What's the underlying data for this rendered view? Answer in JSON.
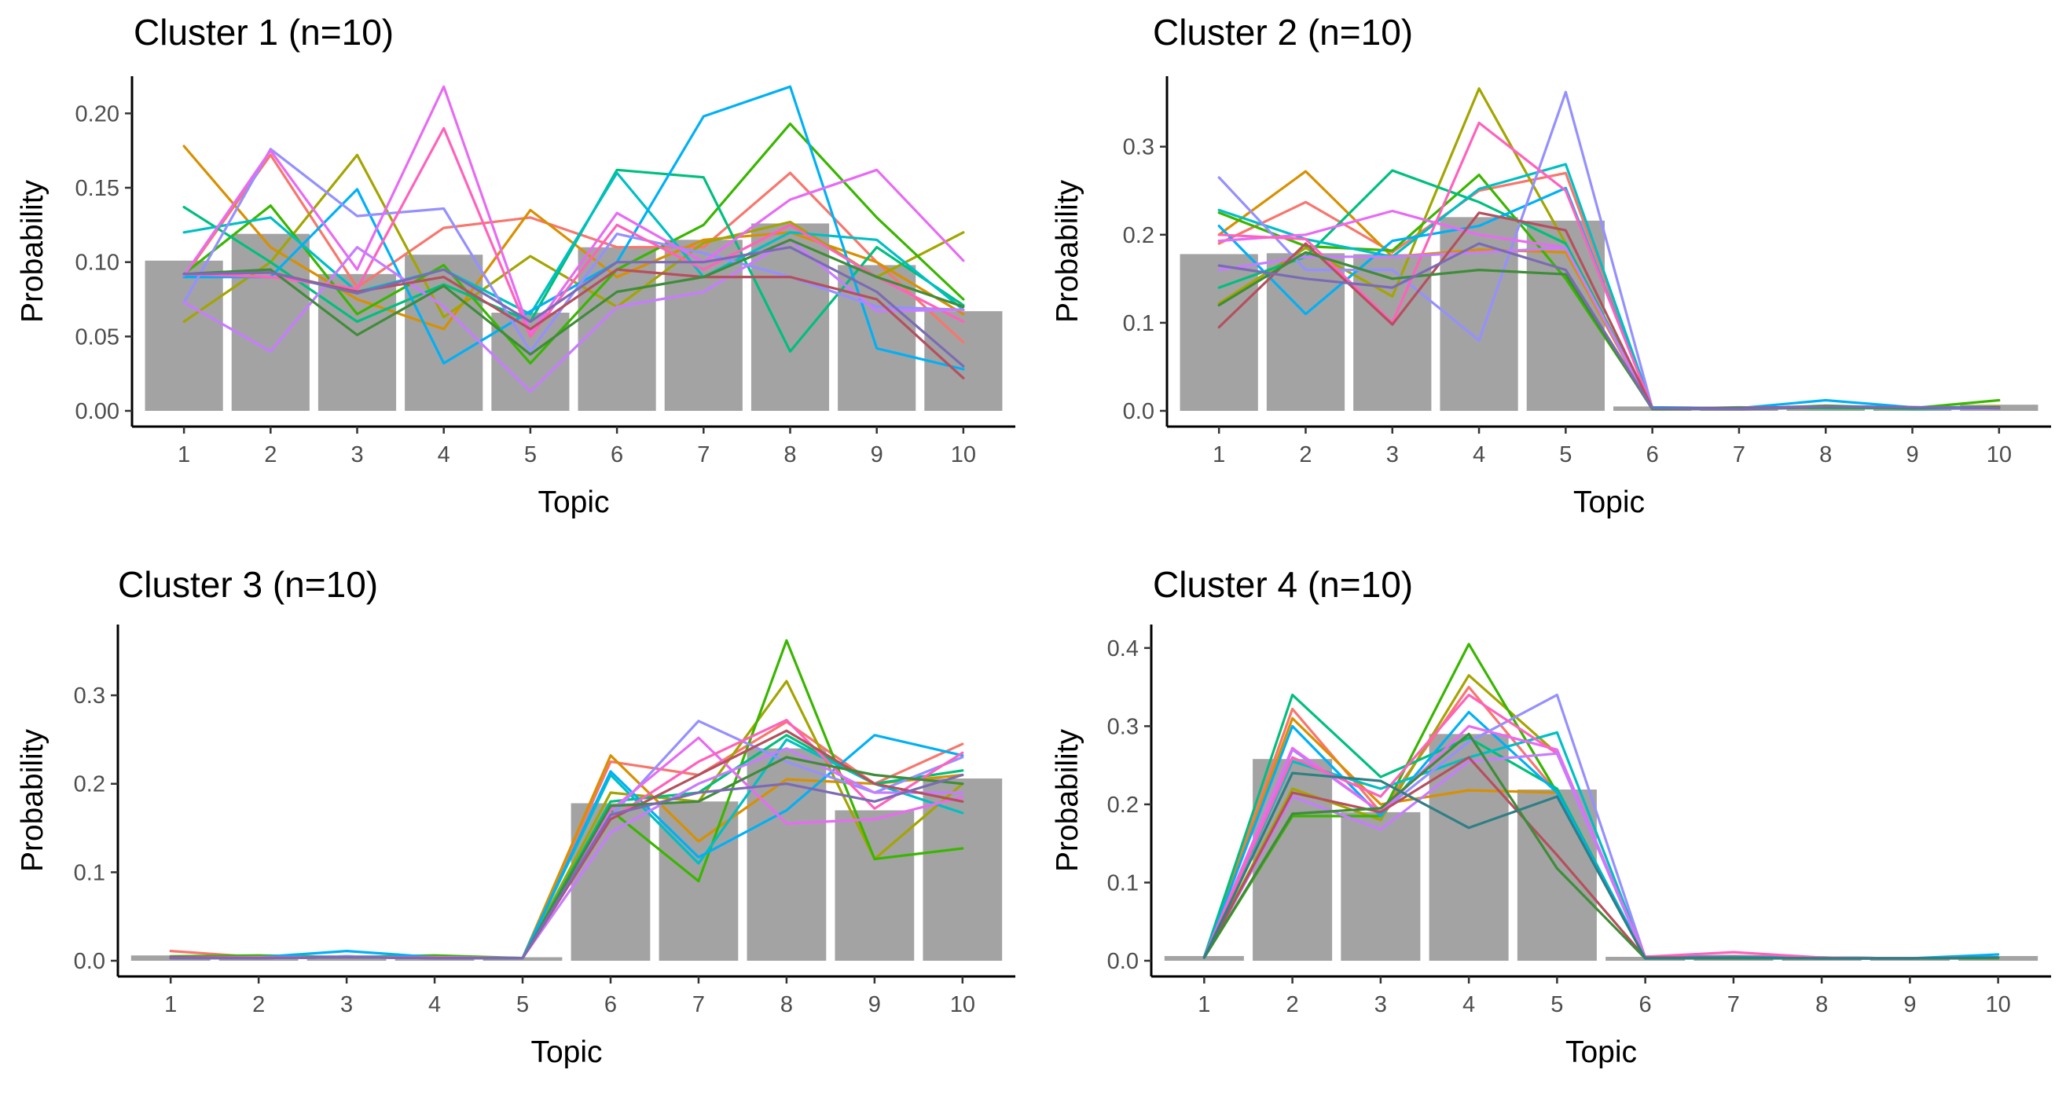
{
  "chart_data": [
    {
      "type": "bar+line",
      "title": "Cluster 1 (n=10)",
      "xlabel": "Topic",
      "ylabel": "Probability",
      "categories": [
        "1",
        "2",
        "3",
        "4",
        "5",
        "6",
        "7",
        "8",
        "9",
        "10"
      ],
      "ylim": [
        0,
        0.225
      ],
      "yticks": [
        0.0,
        0.05,
        0.1,
        0.15,
        0.2
      ],
      "ytick_labels": [
        "0.00",
        "0.05",
        "0.10",
        "0.15",
        "0.20"
      ],
      "bar_values": [
        0.101,
        0.119,
        0.092,
        0.105,
        0.066,
        0.11,
        0.115,
        0.126,
        0.098,
        0.067
      ],
      "series": [
        {
          "color": "#F8766D",
          "values": [
            0.09,
            0.172,
            0.083,
            0.123,
            0.13,
            0.11,
            0.11,
            0.16,
            0.1,
            0.046
          ]
        },
        {
          "color": "#D89000",
          "values": [
            0.178,
            0.11,
            0.075,
            0.055,
            0.135,
            0.09,
            0.115,
            0.12,
            0.1,
            0.065
          ]
        },
        {
          "color": "#A3A500",
          "values": [
            0.06,
            0.1,
            0.172,
            0.063,
            0.104,
            0.07,
            0.113,
            0.127,
            0.09,
            0.12
          ]
        },
        {
          "color": "#39B600",
          "values": [
            0.092,
            0.138,
            0.065,
            0.098,
            0.032,
            0.095,
            0.125,
            0.193,
            0.13,
            0.075
          ]
        },
        {
          "color": "#00BF7D",
          "values": [
            0.137,
            0.1,
            0.06,
            0.085,
            0.06,
            0.162,
            0.157,
            0.04,
            0.11,
            0.071
          ]
        },
        {
          "color": "#00BFC4",
          "values": [
            0.12,
            0.13,
            0.08,
            0.095,
            0.065,
            0.16,
            0.09,
            0.12,
            0.115,
            0.068
          ]
        },
        {
          "color": "#00B0F6",
          "values": [
            0.09,
            0.09,
            0.149,
            0.032,
            0.067,
            0.1,
            0.198,
            0.218,
            0.042,
            0.028
          ]
        },
        {
          "color": "#9590FF",
          "values": [
            0.073,
            0.176,
            0.131,
            0.136,
            0.04,
            0.119,
            0.106,
            0.09,
            0.07,
            0.068
          ]
        },
        {
          "color": "#E76BF3",
          "values": [
            0.091,
            0.175,
            0.095,
            0.218,
            0.052,
            0.133,
            0.1,
            0.142,
            0.162,
            0.101
          ]
        },
        {
          "color": "#FF62BC",
          "values": [
            0.092,
            0.09,
            0.082,
            0.19,
            0.05,
            0.125,
            0.095,
            0.125,
            0.09,
            0.06
          ]
        },
        {
          "color": "#C77CFF",
          "values": [
            0.073,
            0.04,
            0.11,
            0.07,
            0.013,
            0.07,
            0.08,
            0.115,
            0.067,
            0.068
          ]
        },
        {
          "color": "#B5505E",
          "values": [
            0.092,
            0.093,
            0.08,
            0.09,
            0.055,
            0.095,
            0.09,
            0.09,
            0.075,
            0.022
          ]
        },
        {
          "color": "#3F8C3A",
          "values": [
            0.092,
            0.095,
            0.051,
            0.084,
            0.038,
            0.08,
            0.09,
            0.115,
            0.09,
            0.07
          ]
        },
        {
          "color": "#7B6BB5",
          "values": [
            0.092,
            0.093,
            0.079,
            0.095,
            0.06,
            0.1,
            0.1,
            0.11,
            0.08,
            0.03
          ]
        }
      ]
    },
    {
      "type": "bar+line",
      "title": "Cluster 2 (n=10)",
      "xlabel": "Topic",
      "ylabel": "Probability",
      "categories": [
        "1",
        "2",
        "3",
        "4",
        "5",
        "6",
        "7",
        "8",
        "9",
        "10"
      ],
      "ylim": [
        0,
        0.38
      ],
      "yticks": [
        0.0,
        0.1,
        0.2,
        0.3
      ],
      "ytick_labels": [
        "0.0",
        "0.1",
        "0.2",
        "0.3"
      ],
      "bar_values": [
        0.178,
        0.179,
        0.178,
        0.22,
        0.216,
        0.005,
        0.003,
        0.006,
        0.005,
        0.007
      ],
      "series": [
        {
          "color": "#F8766D",
          "values": [
            0.19,
            0.237,
            0.18,
            0.25,
            0.27,
            0.003,
            0.003,
            0.005,
            0.004,
            0.003
          ]
        },
        {
          "color": "#D89000",
          "values": [
            0.2,
            0.272,
            0.175,
            0.183,
            0.18,
            0.002,
            0.002,
            0.005,
            0.003,
            0.005
          ]
        },
        {
          "color": "#A3A500",
          "values": [
            0.122,
            0.185,
            0.13,
            0.366,
            0.19,
            0.003,
            0.003,
            0.004,
            0.003,
            0.004
          ]
        },
        {
          "color": "#39B600",
          "values": [
            0.225,
            0.187,
            0.182,
            0.268,
            0.15,
            0.003,
            0.002,
            0.006,
            0.003,
            0.012
          ]
        },
        {
          "color": "#00BF7D",
          "values": [
            0.14,
            0.175,
            0.273,
            0.237,
            0.19,
            0.002,
            0.004,
            0.003,
            0.003,
            0.003
          ]
        },
        {
          "color": "#00BFC4",
          "values": [
            0.228,
            0.195,
            0.175,
            0.252,
            0.28,
            0.003,
            0.002,
            0.005,
            0.002,
            0.003
          ]
        },
        {
          "color": "#00B0F6",
          "values": [
            0.21,
            0.11,
            0.193,
            0.21,
            0.253,
            0.004,
            0.003,
            0.012,
            0.004,
            0.004
          ]
        },
        {
          "color": "#9590FF",
          "values": [
            0.265,
            0.16,
            0.16,
            0.08,
            0.362,
            0.003,
            0.002,
            0.004,
            0.003,
            0.003
          ]
        },
        {
          "color": "#E76BF3",
          "values": [
            0.193,
            0.2,
            0.227,
            0.2,
            0.185,
            0.003,
            0.003,
            0.005,
            0.003,
            0.003
          ]
        },
        {
          "color": "#FF62BC",
          "values": [
            0.2,
            0.195,
            0.1,
            0.327,
            0.25,
            0.003,
            0.003,
            0.004,
            0.004,
            0.003
          ]
        },
        {
          "color": "#C77CFF",
          "values": [
            0.16,
            0.175,
            0.175,
            0.18,
            0.185,
            0.002,
            0.002,
            0.004,
            0.003,
            0.003
          ]
        },
        {
          "color": "#B5505E",
          "values": [
            0.095,
            0.19,
            0.098,
            0.225,
            0.205,
            0.003,
            0.003,
            0.005,
            0.004,
            0.003
          ]
        },
        {
          "color": "#3F8C3A",
          "values": [
            0.12,
            0.18,
            0.15,
            0.16,
            0.155,
            0.002,
            0.002,
            0.004,
            0.003,
            0.004
          ]
        },
        {
          "color": "#7B6BB5",
          "values": [
            0.165,
            0.15,
            0.14,
            0.19,
            0.16,
            0.003,
            0.002,
            0.005,
            0.004,
            0.003
          ]
        }
      ]
    },
    {
      "type": "bar+line",
      "title": "Cluster 3 (n=10)",
      "xlabel": "Topic",
      "ylabel": "Probability",
      "categories": [
        "1",
        "2",
        "3",
        "4",
        "5",
        "6",
        "7",
        "8",
        "9",
        "10"
      ],
      "ylim": [
        0,
        0.38
      ],
      "yticks": [
        0.0,
        0.1,
        0.2,
        0.3
      ],
      "ytick_labels": [
        "0.0",
        "0.1",
        "0.2",
        "0.3"
      ],
      "bar_values": [
        0.006,
        0.004,
        0.006,
        0.004,
        0.004,
        0.178,
        0.18,
        0.24,
        0.17,
        0.206
      ],
      "series": [
        {
          "color": "#F8766D",
          "values": [
            0.011,
            0.004,
            0.004,
            0.003,
            0.003,
            0.225,
            0.21,
            0.27,
            0.2,
            0.245
          ]
        },
        {
          "color": "#D89000",
          "values": [
            0.004,
            0.003,
            0.004,
            0.003,
            0.003,
            0.232,
            0.135,
            0.205,
            0.2,
            0.21
          ]
        },
        {
          "color": "#A3A500",
          "values": [
            0.003,
            0.003,
            0.004,
            0.003,
            0.003,
            0.19,
            0.18,
            0.316,
            0.115,
            0.2
          ]
        },
        {
          "color": "#39B600",
          "values": [
            0.005,
            0.006,
            0.004,
            0.006,
            0.003,
            0.17,
            0.09,
            0.362,
            0.115,
            0.127
          ]
        },
        {
          "color": "#00BF7D",
          "values": [
            0.004,
            0.003,
            0.004,
            0.004,
            0.003,
            0.18,
            0.19,
            0.255,
            0.2,
            0.215
          ]
        },
        {
          "color": "#00BFC4",
          "values": [
            0.004,
            0.003,
            0.005,
            0.003,
            0.003,
            0.21,
            0.11,
            0.25,
            0.2,
            0.167
          ]
        },
        {
          "color": "#00B0F6",
          "values": [
            0.004,
            0.004,
            0.011,
            0.004,
            0.003,
            0.214,
            0.117,
            0.17,
            0.255,
            0.232
          ]
        },
        {
          "color": "#9590FF",
          "values": [
            0.003,
            0.003,
            0.005,
            0.003,
            0.003,
            0.163,
            0.271,
            0.225,
            0.19,
            0.23
          ]
        },
        {
          "color": "#E76BF3",
          "values": [
            0.004,
            0.003,
            0.004,
            0.003,
            0.003,
            0.17,
            0.252,
            0.155,
            0.16,
            0.185
          ]
        },
        {
          "color": "#FF62BC",
          "values": [
            0.004,
            0.004,
            0.004,
            0.004,
            0.003,
            0.16,
            0.225,
            0.272,
            0.172,
            0.235
          ]
        },
        {
          "color": "#C77CFF",
          "values": [
            0.003,
            0.003,
            0.004,
            0.003,
            0.003,
            0.145,
            0.2,
            0.24,
            0.19,
            0.19
          ]
        },
        {
          "color": "#B5505E",
          "values": [
            0.004,
            0.003,
            0.004,
            0.003,
            0.003,
            0.16,
            0.21,
            0.26,
            0.2,
            0.18
          ]
        },
        {
          "color": "#3F8C3A",
          "values": [
            0.003,
            0.003,
            0.004,
            0.003,
            0.003,
            0.175,
            0.18,
            0.23,
            0.21,
            0.2
          ]
        },
        {
          "color": "#7B6BB5",
          "values": [
            0.003,
            0.003,
            0.004,
            0.003,
            0.003,
            0.165,
            0.19,
            0.2,
            0.18,
            0.21
          ]
        }
      ]
    },
    {
      "type": "bar+line",
      "title": "Cluster 4 (n=10)",
      "xlabel": "Topic",
      "ylabel": "Probability",
      "categories": [
        "1",
        "2",
        "3",
        "4",
        "5",
        "6",
        "7",
        "8",
        "9",
        "10"
      ],
      "ylim": [
        0,
        0.43
      ],
      "yticks": [
        0.0,
        0.1,
        0.2,
        0.3,
        0.4
      ],
      "ytick_labels": [
        "0.0",
        "0.1",
        "0.2",
        "0.3",
        "0.4"
      ],
      "bar_values": [
        0.006,
        0.258,
        0.19,
        0.29,
        0.219,
        0.005,
        0.006,
        0.004,
        0.003,
        0.006
      ],
      "series": [
        {
          "color": "#F8766D",
          "values": [
            0.005,
            0.322,
            0.19,
            0.35,
            0.215,
            0.005,
            0.006,
            0.004,
            0.003,
            0.004
          ]
        },
        {
          "color": "#D89000",
          "values": [
            0.004,
            0.31,
            0.2,
            0.218,
            0.215,
            0.004,
            0.005,
            0.004,
            0.003,
            0.004
          ]
        },
        {
          "color": "#A3A500",
          "values": [
            0.004,
            0.22,
            0.18,
            0.365,
            0.265,
            0.004,
            0.004,
            0.003,
            0.003,
            0.003
          ]
        },
        {
          "color": "#39B600",
          "values": [
            0.004,
            0.185,
            0.185,
            0.405,
            0.215,
            0.004,
            0.004,
            0.003,
            0.003,
            0.003
          ]
        },
        {
          "color": "#00BF7D",
          "values": [
            0.005,
            0.34,
            0.235,
            0.285,
            0.22,
            0.004,
            0.004,
            0.004,
            0.003,
            0.004
          ]
        },
        {
          "color": "#00BFC4",
          "values": [
            0.004,
            0.255,
            0.22,
            0.26,
            0.292,
            0.004,
            0.004,
            0.003,
            0.003,
            0.004
          ]
        },
        {
          "color": "#00B0F6",
          "values": [
            0.004,
            0.3,
            0.185,
            0.318,
            0.215,
            0.005,
            0.005,
            0.004,
            0.003,
            0.008
          ]
        },
        {
          "color": "#9590FF",
          "values": [
            0.004,
            0.27,
            0.19,
            0.28,
            0.34,
            0.004,
            0.004,
            0.003,
            0.003,
            0.004
          ]
        },
        {
          "color": "#E76BF3",
          "values": [
            0.004,
            0.272,
            0.19,
            0.3,
            0.27,
            0.004,
            0.004,
            0.003,
            0.003,
            0.004
          ]
        },
        {
          "color": "#FF62BC",
          "values": [
            0.004,
            0.26,
            0.21,
            0.34,
            0.265,
            0.005,
            0.011,
            0.004,
            0.003,
            0.004
          ]
        },
        {
          "color": "#C77CFF",
          "values": [
            0.004,
            0.21,
            0.168,
            0.255,
            0.265,
            0.003,
            0.004,
            0.003,
            0.003,
            0.004
          ]
        },
        {
          "color": "#B5505E",
          "values": [
            0.004,
            0.215,
            0.19,
            0.26,
            0.135,
            0.004,
            0.004,
            0.003,
            0.003,
            0.004
          ]
        },
        {
          "color": "#3F8C3A",
          "values": [
            0.004,
            0.188,
            0.195,
            0.29,
            0.118,
            0.003,
            0.003,
            0.003,
            0.003,
            0.004
          ]
        },
        {
          "color": "#2F7F84",
          "values": [
            0.004,
            0.24,
            0.23,
            0.17,
            0.21,
            0.003,
            0.004,
            0.003,
            0.003,
            0.004
          ]
        }
      ]
    }
  ]
}
